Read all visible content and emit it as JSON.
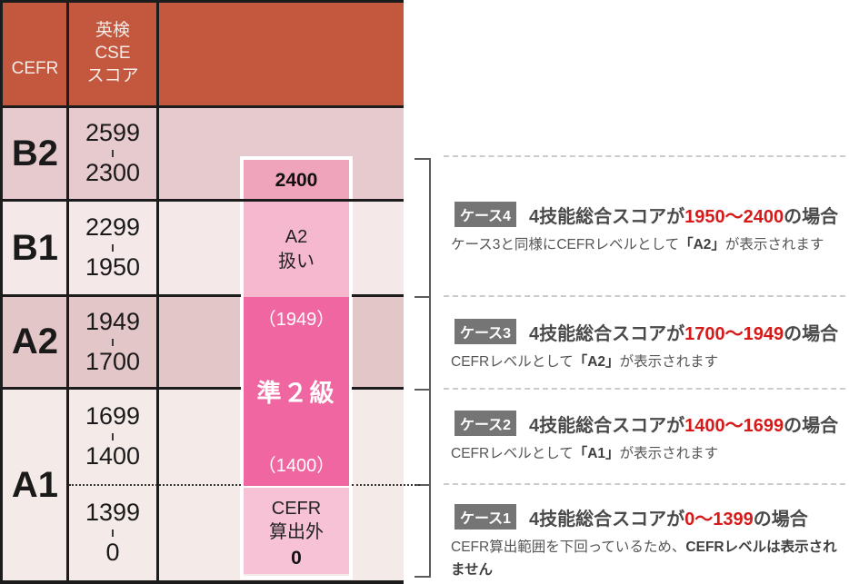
{
  "colors": {
    "header_bg": "#c4583f",
    "row_dark": "#e5c8cb",
    "row_light": "#f4e9e8",
    "bar_top_band": "#efa4bb",
    "bar_a2_band": "#f6b8cf",
    "bar_grade_band": "#ef66a0",
    "bar_outside_band": "#f7c2d5",
    "accent_red": "#d61a1a",
    "badge_bg": "#757575",
    "bracket_gray": "#5c5c5c"
  },
  "table": {
    "header": {
      "cefr": "CEFR",
      "cse": "英検\nCSE\nスコア"
    },
    "levels": [
      "B2",
      "B1",
      "A2",
      "A1"
    ],
    "scores": [
      {
        "high": "2599",
        "low": "2300"
      },
      {
        "high": "2299",
        "low": "1950"
      },
      {
        "high": "1949",
        "low": "1700"
      },
      {
        "high": "1699",
        "low": "1400"
      },
      {
        "high": "1399",
        "low": "0"
      }
    ]
  },
  "bar": {
    "top_score": "2400",
    "a2_note": "A2\n扱い",
    "range_high": "（1949）",
    "grade": "準２級",
    "range_low": "（1400）",
    "outside_note": "CEFR\n算出外",
    "bottom_score": "0"
  },
  "cases": [
    {
      "badge": "ケース4",
      "head_pre": "4技能総合スコアが",
      "head_range": "1950〜2400",
      "head_post": "の場合",
      "desc": [
        {
          "text": "ケース3と同様にCEFRレベルとして",
          "bold": false
        },
        {
          "text": "「A2」",
          "bold": true
        },
        {
          "text": "が表示されます",
          "bold": false
        }
      ]
    },
    {
      "badge": "ケース3",
      "head_pre": "4技能総合スコアが",
      "head_range": "1700〜1949",
      "head_post": "の場合",
      "desc": [
        {
          "text": "CEFRレベルとして",
          "bold": false
        },
        {
          "text": "「A2」",
          "bold": true
        },
        {
          "text": "が表示されます",
          "bold": false
        }
      ]
    },
    {
      "badge": "ケース2",
      "head_pre": "4技能総合スコアが",
      "head_range": "1400〜1699",
      "head_post": "の場合",
      "desc": [
        {
          "text": "CEFRレベルとして",
          "bold": false
        },
        {
          "text": "「A1」",
          "bold": true
        },
        {
          "text": "が表示されます",
          "bold": false
        }
      ]
    },
    {
      "badge": "ケース1",
      "head_pre": "4技能総合スコアが",
      "head_range": "0〜1399",
      "head_post": "の場合",
      "desc": [
        {
          "text": "CEFR算出範囲を下回っているため、",
          "bold": false
        },
        {
          "text": "CEFRレベルは表示されません",
          "bold": true
        }
      ]
    }
  ]
}
